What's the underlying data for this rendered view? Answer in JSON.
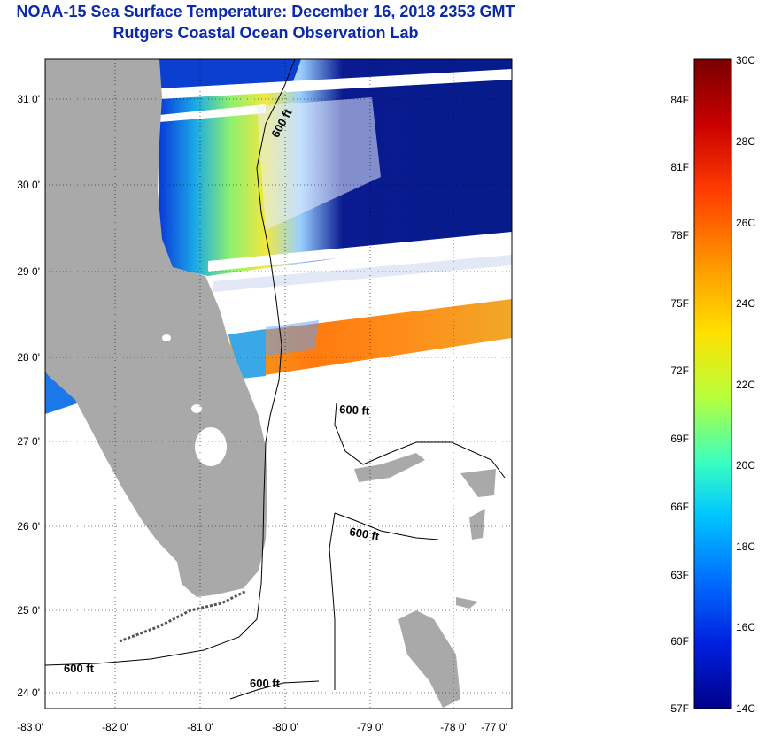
{
  "title": {
    "line1": "NOAA-15 Sea Surface Temperature:  December 16, 2018 2353 GMT",
    "line2": "Rutgers Coastal Ocean Observation Lab"
  },
  "map": {
    "lat_labels": [
      "31 0'",
      "30 0'",
      "29 0'",
      "28 0'",
      "27 0'",
      "26 0'",
      "25 0'",
      "24 0'"
    ],
    "lon_labels": [
      "-83 0'",
      "-82 0'",
      "-81 0'",
      "-80 0'",
      "-79 0'",
      "-78 0'",
      "-77 0'"
    ],
    "contour_labels": [
      "600 ft",
      "600 ft",
      "600 ft",
      "600 ft"
    ],
    "colors": {
      "land": "#a9a9a9",
      "deep_cold": "#061c8a"
    }
  },
  "colorbar": {
    "fahrenheit": [
      "84F",
      "81F",
      "78F",
      "75F",
      "72F",
      "69F",
      "66F",
      "63F",
      "60F",
      "57F"
    ],
    "celsius": [
      "30C",
      "28C",
      "26C",
      "24C",
      "22C",
      "20C",
      "18C",
      "16C",
      "14C"
    ],
    "stops": [
      "#7a0000",
      "#c80000",
      "#ff3a00",
      "#ff9a00",
      "#ffe000",
      "#b8ff3a",
      "#3affc0",
      "#00c8ff",
      "#0070ff",
      "#0020e0",
      "#00008a"
    ]
  }
}
